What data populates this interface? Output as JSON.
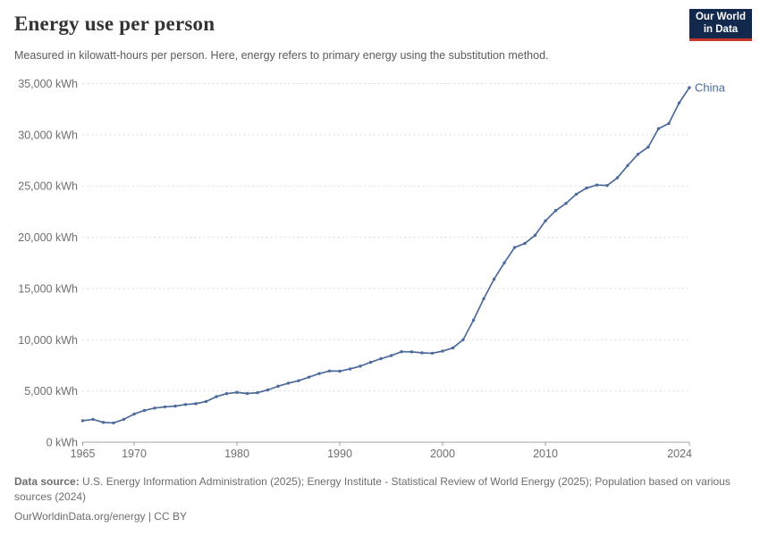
{
  "header": {
    "title": "Energy use per person",
    "subtitle": "Measured in kilowatt-hours per person. Here, energy refers to primary energy using the substitution method.",
    "logo": {
      "line1": "Our World",
      "line2": "in Data",
      "bg_color": "#12284C",
      "stripe_color": "#C8362B"
    }
  },
  "chart_data": {
    "type": "line",
    "title": "Energy use per person",
    "unit": "kWh",
    "grid": "horizontal-dashed",
    "legend_position": "end-of-line-label",
    "xlim": [
      1965,
      2024
    ],
    "ylim": [
      0,
      35000
    ],
    "x_ticks": [
      1965,
      1970,
      1980,
      1990,
      2000,
      2010,
      2024
    ],
    "y_ticks": [
      0,
      5000,
      10000,
      15000,
      20000,
      25000,
      30000,
      35000
    ],
    "y_tick_suffix": " kWh",
    "series": [
      {
        "name": "China",
        "color": "#4C6A9C",
        "x": [
          1965,
          1966,
          1967,
          1968,
          1969,
          1970,
          1971,
          1972,
          1973,
          1974,
          1975,
          1976,
          1977,
          1978,
          1979,
          1980,
          1981,
          1982,
          1983,
          1984,
          1985,
          1986,
          1987,
          1988,
          1989,
          1990,
          1991,
          1992,
          1993,
          1994,
          1995,
          1996,
          1997,
          1998,
          1999,
          2000,
          2001,
          2002,
          2003,
          2004,
          2005,
          2006,
          2007,
          2008,
          2009,
          2010,
          2011,
          2012,
          2013,
          2014,
          2015,
          2016,
          2017,
          2018,
          2019,
          2020,
          2021,
          2022,
          2023,
          2024
        ],
        "values": [
          2100,
          2230,
          1930,
          1880,
          2230,
          2750,
          3100,
          3330,
          3450,
          3520,
          3680,
          3760,
          3970,
          4450,
          4740,
          4860,
          4750,
          4830,
          5100,
          5460,
          5760,
          6000,
          6350,
          6700,
          6950,
          6930,
          7150,
          7420,
          7800,
          8150,
          8450,
          8830,
          8820,
          8720,
          8680,
          8890,
          9200,
          10000,
          11900,
          14000,
          15900,
          17500,
          19000,
          19400,
          20200,
          21600,
          22600,
          23300,
          24200,
          24800,
          25100,
          25050,
          25800,
          27000,
          28100,
          28800,
          30600,
          31100,
          33100,
          34600
        ]
      }
    ],
    "colors": {
      "gridline": "#d9d9d9",
      "axis": "#a0a0a0",
      "tick_label": "#6e6e6e"
    }
  },
  "footer": {
    "source_label": "Data source:",
    "source_text": "U.S. Energy Information Administration (2025); Energy Institute - Statistical Review of World Energy (2025); Population based on various sources (2024)",
    "link_text": "OurWorldinData.org/energy | CC BY"
  }
}
